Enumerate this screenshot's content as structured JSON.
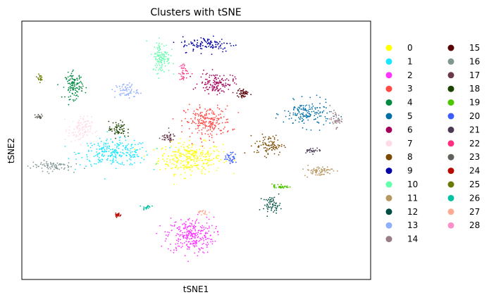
{
  "chart_data": {
    "type": "scatter",
    "title": "Clusters with tSNE",
    "xlabel": "tSNE1",
    "ylabel": "tSNE2",
    "grid": false,
    "ticks": false,
    "legend_placement": "right",
    "legend_columns": 2,
    "xlim": [
      -60,
      60
    ],
    "ylim": [
      -50,
      50
    ],
    "clusters": [
      {
        "name": "0",
        "color": "#ffff00",
        "center": [
          -2,
          -3
        ],
        "spread": [
          11,
          6
        ],
        "n": 300
      },
      {
        "name": "1",
        "color": "#1ce6ff",
        "center": [
          -28,
          -1
        ],
        "spread": [
          12,
          5
        ],
        "n": 260
      },
      {
        "name": "2",
        "color": "#ff34ff",
        "center": [
          -2,
          -33
        ],
        "spread": [
          8,
          7
        ],
        "n": 280
      },
      {
        "name": "3",
        "color": "#ff4a46",
        "center": [
          4,
          11
        ],
        "spread": [
          8,
          6
        ],
        "n": 220
      },
      {
        "name": "4",
        "color": "#008941",
        "center": [
          -42,
          25
        ],
        "spread": [
          3,
          5
        ],
        "n": 120
      },
      {
        "name": "5",
        "color": "#006fa6",
        "center": [
          38,
          14
        ],
        "spread": [
          8,
          5
        ],
        "n": 160
      },
      {
        "name": "6",
        "color": "#a30059",
        "center": [
          7,
          26
        ],
        "spread": [
          6,
          4
        ],
        "n": 130
      },
      {
        "name": "7",
        "color": "#ffdbe5",
        "center": [
          -40,
          8
        ],
        "spread": [
          4,
          5
        ],
        "n": 110
      },
      {
        "name": "8",
        "color": "#7a4900",
        "center": [
          25,
          2
        ],
        "spread": [
          5,
          4
        ],
        "n": 90
      },
      {
        "name": "9",
        "color": "#0000a6",
        "center": [
          4,
          41
        ],
        "spread": [
          9,
          3
        ],
        "n": 110
      },
      {
        "name": "10",
        "color": "#63ffac",
        "center": [
          -12,
          36
        ],
        "spread": [
          3,
          6
        ],
        "n": 120
      },
      {
        "name": "11",
        "color": "#b79762",
        "center": [
          42,
          -8
        ],
        "spread": [
          5,
          2
        ],
        "n": 70
      },
      {
        "name": "12",
        "color": "#004d43",
        "center": [
          26,
          -21
        ],
        "spread": [
          3,
          3
        ],
        "n": 60
      },
      {
        "name": "13",
        "color": "#8fb0ff",
        "center": [
          -24,
          23
        ],
        "spread": [
          4,
          3
        ],
        "n": 60
      },
      {
        "name": "14",
        "color": "#997d87",
        "center": [
          48,
          12
        ],
        "spread": [
          2,
          3
        ],
        "n": 40
      },
      {
        "name": "15",
        "color": "#5a0007",
        "center": [
          16,
          22
        ],
        "spread": [
          2,
          2
        ],
        "n": 45
      },
      {
        "name": "16",
        "color": "#809693",
        "center": [
          -50,
          -6
        ],
        "spread": [
          7,
          2
        ],
        "n": 80
      },
      {
        "name": "17",
        "color": "#6a3a4c",
        "center": [
          -10,
          5
        ],
        "spread": [
          3,
          2
        ],
        "n": 40
      },
      {
        "name": "18",
        "color": "#1b4400",
        "center": [
          -27,
          8
        ],
        "spread": [
          3,
          3
        ],
        "n": 60
      },
      {
        "name": "19",
        "color": "#4fc601",
        "center": [
          29,
          -14
        ],
        "spread": [
          3,
          1
        ],
        "n": 40
      },
      {
        "name": "20",
        "color": "#3b5dff",
        "center": [
          12,
          -3
        ],
        "spread": [
          2,
          2
        ],
        "n": 40
      },
      {
        "name": "21",
        "color": "#4a3b53",
        "center": [
          40,
          0
        ],
        "spread": [
          3,
          1
        ],
        "n": 30
      },
      {
        "name": "22",
        "color": "#ff2f80",
        "center": [
          -4,
          30
        ],
        "spread": [
          2,
          3
        ],
        "n": 30
      },
      {
        "name": "23",
        "color": "#61615a",
        "center": [
          -54,
          13
        ],
        "spread": [
          1.5,
          1
        ],
        "n": 20
      },
      {
        "name": "24",
        "color": "#ba0900",
        "center": [
          -27,
          -25
        ],
        "spread": [
          1,
          1
        ],
        "n": 25
      },
      {
        "name": "25",
        "color": "#6b7900",
        "center": [
          -54,
          28
        ],
        "spread": [
          0.8,
          1.2
        ],
        "n": 20
      },
      {
        "name": "26",
        "color": "#00c2a0",
        "center": [
          -17,
          -22
        ],
        "spread": [
          1.5,
          1
        ],
        "n": 20
      },
      {
        "name": "27",
        "color": "#ffaa92",
        "center": [
          2,
          -24
        ],
        "spread": [
          2,
          1
        ],
        "n": 20
      },
      {
        "name": "28",
        "color": "#ff90c9",
        "center": [
          -5,
          33
        ],
        "spread": [
          1,
          1
        ],
        "n": 10
      }
    ]
  }
}
